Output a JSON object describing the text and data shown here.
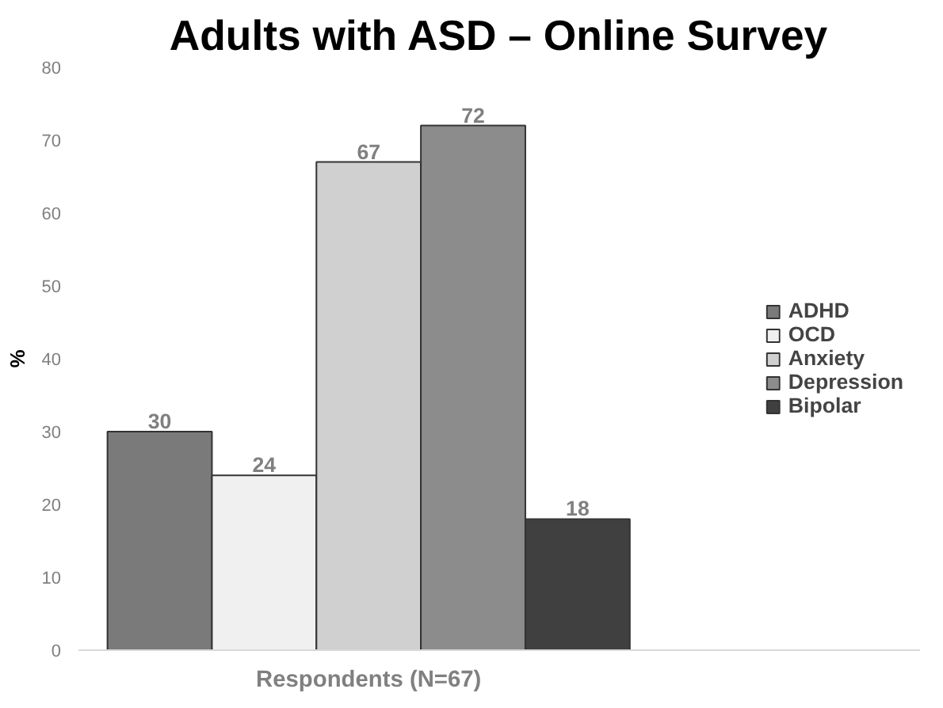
{
  "chart_data": {
    "type": "bar",
    "title": "Adults with ASD – Online Survey",
    "ylabel": "%",
    "categories": [
      "Respondents (N=67)"
    ],
    "series": [
      {
        "name": "ADHD",
        "color": "#7a7a7a",
        "values": [
          30
        ]
      },
      {
        "name": "OCD",
        "color": "#f0f0f0",
        "values": [
          24
        ]
      },
      {
        "name": "Anxiety",
        "color": "#d0d0d0",
        "values": [
          67
        ]
      },
      {
        "name": "Depression",
        "color": "#8c8c8c",
        "values": [
          72
        ]
      },
      {
        "name": "Bipolar",
        "color": "#404040",
        "values": [
          18
        ]
      }
    ],
    "ylim": [
      0,
      80
    ],
    "yticks": [
      0,
      10,
      20,
      30,
      40,
      50,
      60,
      70,
      80
    ],
    "grid": false,
    "legend": "right",
    "data_labels": true
  }
}
